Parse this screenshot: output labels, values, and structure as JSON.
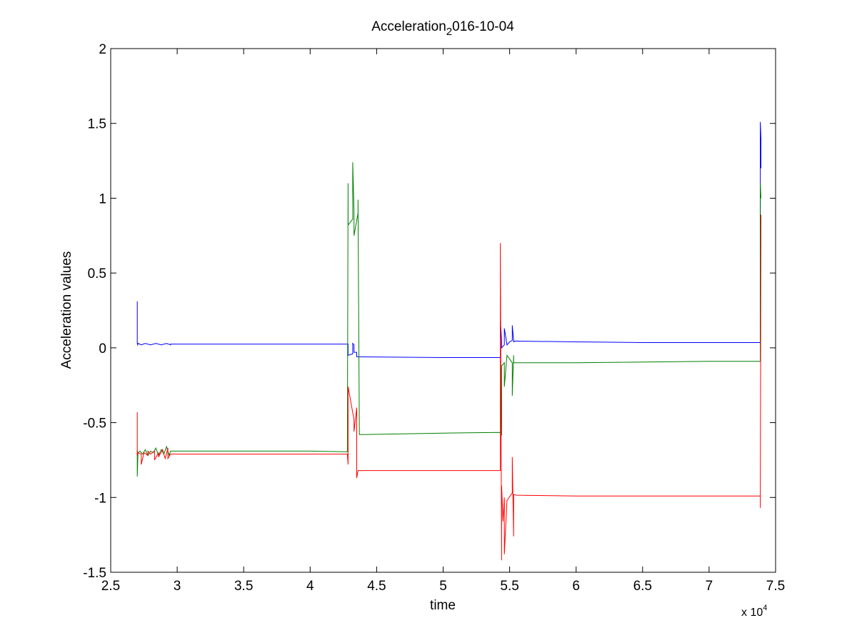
{
  "chart_data": {
    "type": "line",
    "title_main": "Acceleration",
    "title_sub": "2",
    "title_rest": "016-10-04",
    "xlabel": "time",
    "ylabel": "Acceleration values",
    "x_multiplier_text": "x 10",
    "x_multiplier_exp": "4",
    "xlim": [
      25000,
      75000
    ],
    "ylim": [
      -1.5,
      2
    ],
    "x_ticks": [
      25000,
      30000,
      35000,
      40000,
      45000,
      50000,
      55000,
      60000,
      65000,
      70000,
      75000
    ],
    "x_tick_labels": [
      "2.5",
      "3",
      "3.5",
      "4",
      "4.5",
      "5",
      "5.5",
      "6",
      "6.5",
      "7",
      "7.5"
    ],
    "y_ticks": [
      -1.5,
      -1,
      -0.5,
      0,
      0.5,
      1,
      1.5,
      2
    ],
    "y_tick_labels": [
      "-1.5",
      "-1",
      "-0.5",
      "0",
      "0.5",
      "1",
      "1.5",
      "2"
    ],
    "grid": false,
    "legend": "none",
    "series": [
      {
        "color": "#0000ff",
        "x": [
          27000,
          27000,
          27030,
          27060,
          27300,
          27600,
          28000,
          28400,
          28800,
          29200,
          29500,
          29500,
          30000,
          35000,
          40000,
          42800,
          42850,
          42850,
          43200,
          43200,
          43300,
          43300,
          43500,
          43500,
          43600,
          50000,
          54300,
          54300,
          54400,
          54400,
          54600,
          54600,
          54800,
          55000,
          55200,
          55200,
          55300,
          55300,
          55400,
          60000,
          65000,
          70000,
          73800,
          73850,
          73850,
          73900,
          73900
        ],
        "y": [
          0.31,
          0.03,
          0.02,
          0.03,
          0.02,
          0.03,
          0.02,
          0.03,
          0.02,
          0.03,
          0.02,
          0.025,
          0.025,
          0.025,
          0.025,
          0.025,
          0.025,
          -0.05,
          -0.04,
          0.03,
          0.02,
          -0.03,
          -0.03,
          -0.06,
          -0.06,
          -0.065,
          -0.065,
          0.18,
          0.05,
          0.0,
          0.02,
          0.13,
          0.02,
          0.04,
          0.05,
          0.15,
          0.05,
          0.04,
          0.045,
          0.04,
          0.035,
          0.035,
          0.035,
          0.035,
          1.51,
          1.4,
          1.2
        ]
      },
      {
        "color": "#007f00",
        "x": [
          27000,
          27000,
          27050,
          27200,
          27400,
          27600,
          27800,
          28000,
          28200,
          28400,
          28600,
          28800,
          29000,
          29200,
          29400,
          29500,
          30000,
          35000,
          40000,
          42800,
          42800,
          42850,
          42850,
          43200,
          43200,
          43300,
          43300,
          43600,
          43600,
          43700,
          50000,
          54300,
          54300,
          54400,
          54400,
          54600,
          54600,
          54800,
          55200,
          55200,
          55300,
          55300,
          55500,
          60000,
          65000,
          70000,
          73800,
          73850,
          73850,
          73900
        ],
        "y": [
          -0.68,
          -0.86,
          -0.7,
          -0.69,
          -0.71,
          -0.68,
          -0.72,
          -0.69,
          -0.7,
          -0.67,
          -0.72,
          -0.68,
          -0.71,
          -0.66,
          -0.72,
          -0.69,
          -0.69,
          -0.69,
          -0.69,
          -0.695,
          -0.695,
          1.1,
          0.82,
          0.86,
          1.24,
          0.92,
          0.75,
          0.9,
          0.99,
          -0.58,
          -0.57,
          -0.565,
          -0.565,
          -0.58,
          -0.12,
          -0.1,
          -0.26,
          -0.05,
          -0.1,
          -0.32,
          -0.05,
          -0.1,
          -0.1,
          -0.1,
          -0.095,
          -0.09,
          -0.09,
          -0.09,
          1.1,
          1.0
        ]
      },
      {
        "color": "#ff0000",
        "x": [
          27000,
          27000,
          27050,
          27300,
          27300,
          27500,
          27800,
          27800,
          28000,
          28300,
          28300,
          28600,
          28600,
          28900,
          29100,
          29300,
          29300,
          29500,
          30000,
          35000,
          40000,
          42800,
          42800,
          42850,
          42850,
          43300,
          43300,
          43500,
          43500,
          43600,
          50000,
          54300,
          54300,
          54400,
          54400,
          54500,
          54600,
          54600,
          54800,
          55200,
          55200,
          55300,
          55300,
          55500,
          60000,
          65000,
          70000,
          73800,
          73850,
          73850,
          73900
        ],
        "y": [
          -0.43,
          -0.72,
          -0.7,
          -0.71,
          -0.78,
          -0.7,
          -0.72,
          -0.69,
          -0.71,
          -0.69,
          -0.75,
          -0.7,
          -0.73,
          -0.68,
          -0.74,
          -0.67,
          -0.74,
          -0.71,
          -0.71,
          -0.71,
          -0.71,
          -0.71,
          -0.71,
          -0.78,
          -0.26,
          -0.48,
          -0.56,
          -0.4,
          -0.87,
          -0.82,
          -0.82,
          -0.82,
          0.7,
          -1.42,
          -0.92,
          -1.16,
          -1.0,
          -1.38,
          -1.02,
          -0.97,
          -0.73,
          -1.26,
          -0.98,
          -0.985,
          -0.99,
          -0.99,
          -0.99,
          -0.99,
          -0.99,
          -1.07,
          0.89
        ]
      }
    ]
  }
}
